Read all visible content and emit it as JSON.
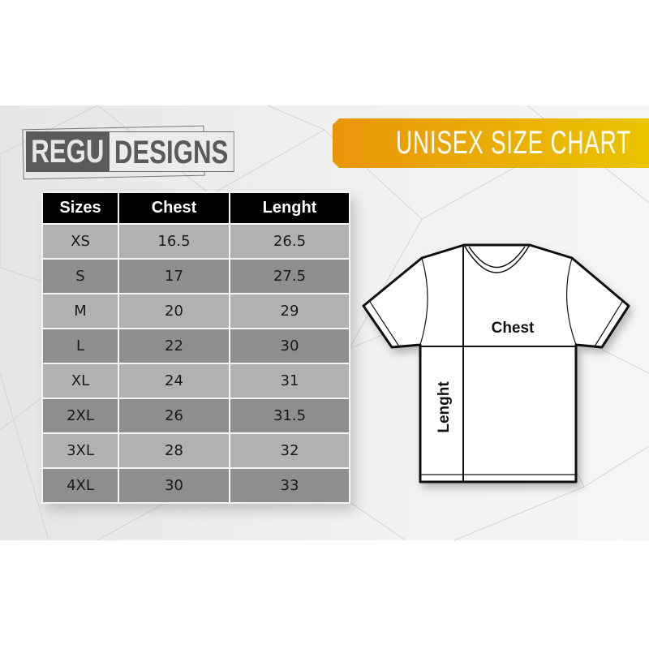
{
  "brand": {
    "part1": "REGU",
    "part2": "DESIGNS"
  },
  "banner": {
    "title": "UNISEX SIZE CHART",
    "color_start": "#e9950c",
    "color_end": "#ebc400"
  },
  "table": {
    "headers": [
      "Sizes",
      "Chest",
      "Lenght"
    ],
    "rows": [
      [
        "XS",
        "16.5",
        "26.5"
      ],
      [
        "S",
        "17",
        "27.5"
      ],
      [
        "M",
        "20",
        "29"
      ],
      [
        "L",
        "22",
        "30"
      ],
      [
        "XL",
        "24",
        "31"
      ],
      [
        "2XL",
        "26",
        "31.5"
      ],
      [
        "3XL",
        "28",
        "32"
      ],
      [
        "4XL",
        "30",
        "33"
      ]
    ]
  },
  "diagram": {
    "chest_label": "Chest",
    "length_label": "Lenght"
  }
}
